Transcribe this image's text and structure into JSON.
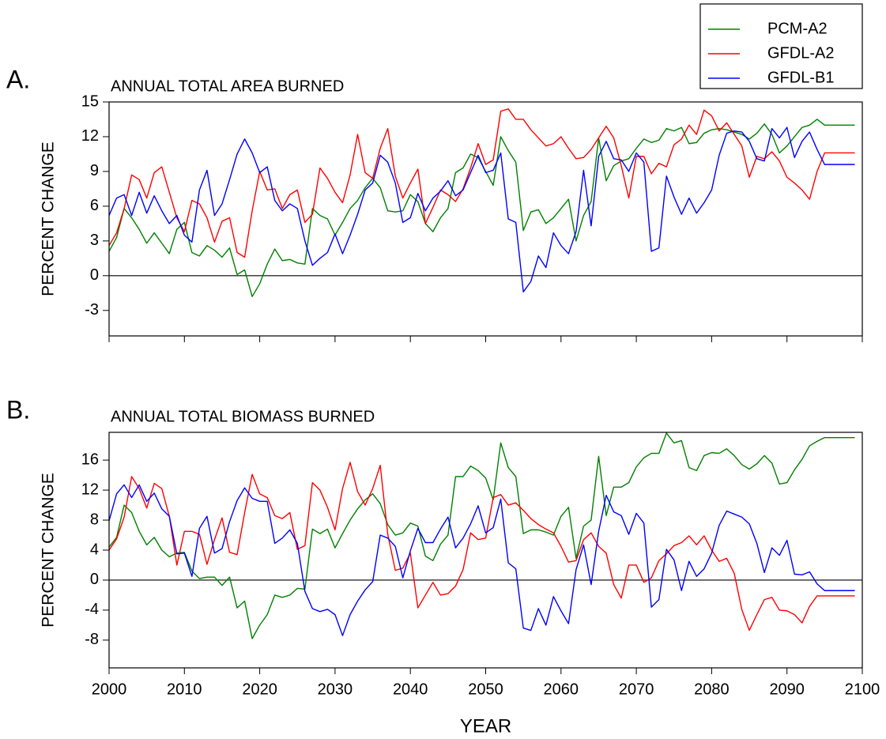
{
  "chart_data": [
    {
      "type": "line",
      "panel_label": "A.",
      "title": "ANNUAL TOTAL AREA BURNED",
      "y_label": "PERCENT CHANGE",
      "legend": "upper right",
      "x": [
        2000,
        2001,
        2002,
        2003,
        2004,
        2005,
        2006,
        2007,
        2008,
        2009,
        2010,
        2011,
        2012,
        2013,
        2014,
        2015,
        2016,
        2017,
        2018,
        2019,
        2020,
        2021,
        2022,
        2023,
        2024,
        2025,
        2026,
        2027,
        2028,
        2029,
        2030,
        2031,
        2032,
        2033,
        2034,
        2035,
        2036,
        2037,
        2038,
        2039,
        2040,
        2041,
        2042,
        2043,
        2044,
        2045,
        2046,
        2047,
        2048,
        2049,
        2050,
        2051,
        2052,
        2053,
        2054,
        2055,
        2056,
        2057,
        2058,
        2059,
        2060,
        2061,
        2062,
        2063,
        2064,
        2065,
        2066,
        2067,
        2068,
        2069,
        2070,
        2071,
        2072,
        2073,
        2074,
        2075,
        2076,
        2077,
        2078,
        2079,
        2080,
        2081,
        2082,
        2083,
        2084,
        2085,
        2086,
        2087,
        2088,
        2089,
        2090,
        2091,
        2092,
        2093,
        2094,
        2095,
        2096,
        2097,
        2098,
        2099
      ],
      "xlim": [
        2000,
        2100
      ],
      "xticks": [
        2000,
        2010,
        2020,
        2030,
        2040,
        2050,
        2060,
        2070,
        2080,
        2090,
        2100
      ],
      "ylim": [
        -5.2,
        15
      ],
      "yticks": [
        -3,
        0,
        3,
        6,
        9,
        12,
        15
      ],
      "series": [
        {
          "name": "PCM-A2",
          "color": "#008000",
          "values": [
            2.1,
            3.3,
            5.8,
            5.0,
            4.0,
            2.8,
            3.7,
            2.8,
            1.9,
            4.0,
            4.6,
            2.0,
            1.7,
            2.6,
            2.2,
            1.6,
            2.4,
            0.1,
            0.5,
            -1.8,
            -0.7,
            1.0,
            2.3,
            1.3,
            1.4,
            1.1,
            1.0,
            5.8,
            5.2,
            4.9,
            3.5,
            4.6,
            5.8,
            6.5,
            7.6,
            8.4,
            7.6,
            5.6,
            5.5,
            5.6,
            7.0,
            6.4,
            4.5,
            3.8,
            5.0,
            5.8,
            8.9,
            9.3,
            10.5,
            10.2,
            9.0,
            7.8,
            12.0,
            10.8,
            9.8,
            3.9,
            5.5,
            5.7,
            4.5,
            5.0,
            5.8,
            6.6,
            3.0,
            5.2,
            6.4,
            11.9,
            8.2,
            9.5,
            9.9,
            10.1,
            11.0,
            11.8,
            11.5,
            11.7,
            12.7,
            12.5,
            12.8,
            11.4,
            11.5,
            12.3,
            12.6,
            12.7,
            12.6,
            12.4,
            12.2,
            11.8,
            12.3,
            13.1,
            12.2,
            10.6,
            11.2,
            12.0,
            12.8,
            13.0,
            13.5,
            13.0,
            13.0,
            13.0,
            13.0,
            13.0
          ]
        },
        {
          "name": "GFDL-A2",
          "color": "#ff0000",
          "values": [
            2.6,
            3.7,
            5.8,
            8.7,
            8.3,
            6.7,
            8.9,
            9.4,
            7.2,
            5.0,
            3.8,
            6.5,
            6.2,
            5.0,
            2.9,
            4.7,
            5.0,
            2.0,
            1.6,
            5.6,
            9.0,
            7.4,
            7.5,
            5.8,
            7.0,
            7.4,
            4.6,
            5.3,
            9.3,
            8.4,
            7.2,
            6.3,
            8.7,
            12.2,
            8.9,
            8.4,
            11.0,
            12.7,
            8.6,
            6.7,
            8.0,
            9.2,
            4.5,
            5.9,
            7.4,
            7.0,
            6.4,
            7.5,
            9.3,
            11.4,
            9.6,
            10.0,
            14.2,
            14.4,
            13.5,
            13.5,
            12.6,
            11.9,
            11.2,
            11.4,
            12.0,
            11.0,
            10.1,
            10.2,
            10.9,
            11.9,
            12.9,
            11.9,
            9.5,
            6.7,
            10.3,
            10.3,
            8.8,
            9.7,
            9.4,
            11.3,
            11.8,
            13.0,
            12.2,
            14.3,
            13.8,
            12.5,
            13.2,
            12.2,
            11.2,
            8.5,
            10.3,
            10.1,
            10.7,
            9.9,
            8.5,
            8.0,
            7.4,
            6.6,
            9.0,
            10.6,
            10.6,
            10.6,
            10.6,
            10.6
          ]
        },
        {
          "name": "GFDL-B1",
          "color": "#0000ff",
          "values": [
            5.2,
            6.7,
            7.0,
            5.2,
            7.2,
            5.4,
            6.9,
            5.6,
            4.5,
            5.2,
            3.5,
            2.9,
            7.4,
            9.1,
            5.2,
            6.2,
            8.3,
            10.5,
            11.8,
            10.6,
            8.9,
            9.4,
            6.5,
            5.6,
            6.2,
            5.8,
            3.0,
            0.9,
            1.5,
            2.0,
            3.6,
            1.9,
            3.5,
            5.3,
            7.4,
            8.0,
            10.4,
            9.8,
            8.0,
            4.6,
            5.0,
            7.1,
            5.6,
            6.7,
            7.3,
            8.2,
            6.9,
            7.4,
            8.9,
            10.4,
            8.9,
            9.1,
            10.6,
            4.9,
            4.6,
            -1.4,
            -0.5,
            1.7,
            0.7,
            3.7,
            2.6,
            1.9,
            3.8,
            9.1,
            4.3,
            10.3,
            11.6,
            10.1,
            10.0,
            9.0,
            10.6,
            9.8,
            2.1,
            2.4,
            8.6,
            6.8,
            5.3,
            6.7,
            5.4,
            6.3,
            7.4,
            10.4,
            12.3,
            12.5,
            12.4,
            11.6,
            10.1,
            9.9,
            12.7,
            11.9,
            12.8,
            10.2,
            11.6,
            12.4,
            10.9,
            9.6,
            9.6,
            9.6,
            9.6,
            9.6
          ]
        }
      ]
    },
    {
      "type": "line",
      "panel_label": "B.",
      "title": "ANNUAL TOTAL BIOMASS BURNED",
      "y_label": "PERCENT CHANGE",
      "x_label": "YEAR",
      "x": [
        2000,
        2001,
        2002,
        2003,
        2004,
        2005,
        2006,
        2007,
        2008,
        2009,
        2010,
        2011,
        2012,
        2013,
        2014,
        2015,
        2016,
        2017,
        2018,
        2019,
        2020,
        2021,
        2022,
        2023,
        2024,
        2025,
        2026,
        2027,
        2028,
        2029,
        2030,
        2031,
        2032,
        2033,
        2034,
        2035,
        2036,
        2037,
        2038,
        2039,
        2040,
        2041,
        2042,
        2043,
        2044,
        2045,
        2046,
        2047,
        2048,
        2049,
        2050,
        2051,
        2052,
        2053,
        2054,
        2055,
        2056,
        2057,
        2058,
        2059,
        2060,
        2061,
        2062,
        2063,
        2064,
        2065,
        2066,
        2067,
        2068,
        2069,
        2070,
        2071,
        2072,
        2073,
        2074,
        2075,
        2076,
        2077,
        2078,
        2079,
        2080,
        2081,
        2082,
        2083,
        2084,
        2085,
        2086,
        2087,
        2088,
        2089,
        2090,
        2091,
        2092,
        2093,
        2094,
        2095,
        2096,
        2097,
        2098,
        2099
      ],
      "xlim": [
        2000,
        2100
      ],
      "xticks": [
        2000,
        2010,
        2020,
        2030,
        2040,
        2050,
        2060,
        2070,
        2080,
        2090,
        2100
      ],
      "ylim": [
        -11.7,
        19.7
      ],
      "yticks": [
        -8,
        -4,
        0,
        4,
        8,
        12,
        16
      ],
      "series": [
        {
          "color": "#008000",
          "values": [
            4.4,
            5.7,
            10.0,
            9.0,
            6.5,
            4.7,
            5.7,
            4.0,
            3.1,
            3.6,
            3.7,
            1.2,
            0.2,
            0.4,
            0.4,
            -0.7,
            0.4,
            -3.7,
            -2.8,
            -7.8,
            -6.0,
            -4.6,
            -2.0,
            -2.3,
            -2.0,
            -1.1,
            -1.2,
            6.8,
            6.2,
            6.8,
            4.3,
            6.2,
            8.0,
            9.5,
            10.7,
            11.5,
            10.2,
            7.4,
            6.0,
            6.3,
            7.6,
            7.2,
            3.2,
            2.6,
            4.8,
            6.0,
            13.8,
            13.8,
            15.2,
            14.6,
            13.6,
            10.7,
            18.3,
            15.0,
            13.8,
            6.2,
            6.7,
            6.7,
            6.4,
            6.0,
            8.5,
            9.7,
            2.9,
            7.2,
            8.0,
            16.5,
            8.6,
            12.4,
            12.4,
            13.0,
            15.1,
            16.3,
            16.9,
            16.9,
            19.6,
            18.3,
            18.6,
            15.0,
            14.6,
            16.6,
            17.0,
            16.9,
            17.5,
            16.6,
            15.4,
            14.8,
            15.5,
            16.6,
            15.6,
            12.8,
            13.0,
            14.7,
            16.1,
            17.9,
            18.5,
            19.0,
            19.0,
            19.0,
            19.0,
            19.0
          ]
        },
        {
          "color": "#ff0000",
          "values": [
            4.0,
            5.5,
            8.4,
            13.8,
            12.2,
            9.6,
            12.9,
            12.2,
            8.5,
            2.0,
            6.5,
            6.5,
            6.1,
            2.1,
            5.4,
            8.3,
            3.7,
            3.4,
            9.0,
            14.1,
            11.5,
            11.0,
            8.6,
            8.2,
            9.0,
            4.1,
            4.6,
            13.0,
            12.0,
            9.7,
            6.7,
            12.2,
            15.7,
            11.8,
            10.0,
            12.2,
            15.3,
            6.1,
            1.3,
            1.6,
            3.6,
            -3.7,
            -2.0,
            -0.3,
            -2.0,
            -1.8,
            -0.8,
            1.4,
            6.3,
            5.4,
            5.6,
            11.0,
            11.4,
            10.0,
            10.3,
            9.3,
            8.2,
            7.4,
            6.8,
            6.3,
            4.5,
            2.4,
            2.6,
            5.4,
            6.3,
            4.5,
            3.6,
            -0.6,
            -2.4,
            2.0,
            2.0,
            -0.3,
            0.3,
            2.6,
            3.5,
            4.6,
            5.0,
            5.9,
            4.7,
            5.9,
            4.0,
            2.5,
            2.9,
            0.9,
            -3.9,
            -6.7,
            -4.6,
            -2.6,
            -2.3,
            -4.0,
            -4.1,
            -4.6,
            -5.7,
            -3.5,
            -2.1,
            -2.1,
            -2.1,
            -2.1,
            -2.1,
            -2.1
          ]
        },
        {
          "color": "#0000ff",
          "values": [
            7.9,
            11.5,
            12.7,
            11.0,
            12.7,
            10.5,
            11.6,
            9.5,
            8.5,
            3.5,
            3.6,
            0.5,
            6.9,
            8.5,
            3.6,
            4.2,
            7.8,
            10.6,
            12.3,
            10.9,
            10.5,
            10.5,
            4.9,
            5.6,
            6.7,
            4.9,
            -1.5,
            -3.8,
            -4.2,
            -3.9,
            -4.6,
            -7.4,
            -4.6,
            -2.8,
            -1.3,
            -0.2,
            6.0,
            5.6,
            4.5,
            0.3,
            3.9,
            6.9,
            5.0,
            5.0,
            6.8,
            8.4,
            4.3,
            5.6,
            7.5,
            9.9,
            6.3,
            7.0,
            10.8,
            2.3,
            1.5,
            -6.4,
            -6.7,
            -3.8,
            -6.0,
            -2.2,
            -4.1,
            -5.8,
            1.4,
            4.7,
            -0.6,
            6.5,
            11.3,
            9.1,
            8.6,
            6.1,
            8.9,
            7.6,
            -3.6,
            -2.6,
            4.1,
            2.7,
            -1.4,
            2.5,
            0.5,
            1.5,
            3.6,
            7.3,
            9.2,
            8.8,
            8.4,
            7.5,
            4.9,
            1.0,
            4.3,
            3.3,
            5.3,
            0.8,
            0.7,
            1.1,
            -0.5,
            -1.4,
            -1.4,
            -1.4,
            -1.4,
            -1.4
          ]
        }
      ]
    }
  ]
}
